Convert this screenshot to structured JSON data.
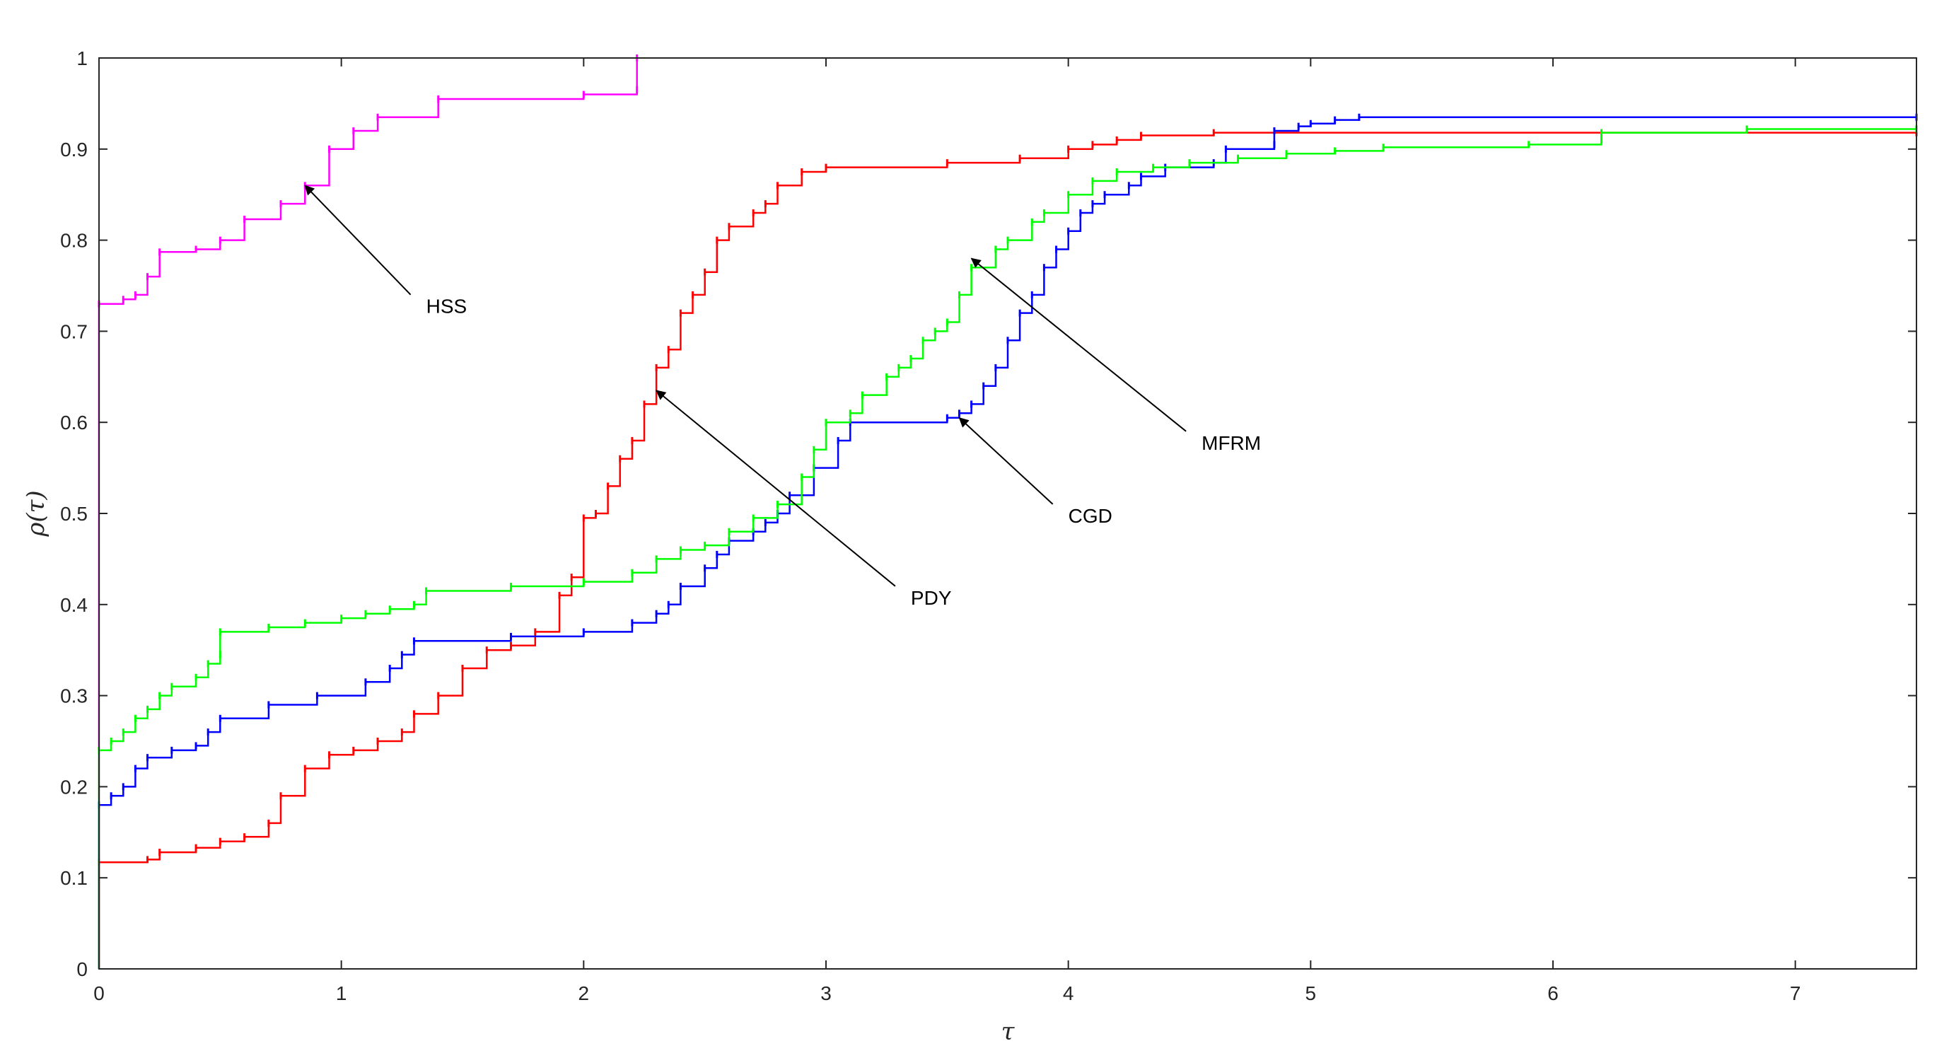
{
  "chart_data": {
    "type": "line",
    "title": "",
    "xlabel": "τ",
    "ylabel": "ρ(τ)",
    "xlim": [
      0,
      7.5
    ],
    "ylim": [
      0,
      1
    ],
    "grid": false,
    "x_ticks": [
      0,
      1,
      2,
      3,
      4,
      5,
      6,
      7
    ],
    "y_ticks": [
      0,
      0.1,
      0.2,
      0.3,
      0.4,
      0.5,
      0.6,
      0.7,
      0.8,
      0.9,
      1
    ],
    "x_tick_labels": [
      "0",
      "1",
      "2",
      "3",
      "4",
      "5",
      "6",
      "7"
    ],
    "y_tick_labels": [
      "0",
      "0.1",
      "0.2",
      "0.3",
      "0.4",
      "0.5",
      "0.6",
      "0.7",
      "0.8",
      "0.9",
      "1"
    ],
    "series": [
      {
        "name": "HSS",
        "color": "#ff00ff",
        "step": true,
        "points": [
          [
            0,
            0
          ],
          [
            0,
            0.73
          ],
          [
            0.1,
            0.735
          ],
          [
            0.15,
            0.74
          ],
          [
            0.2,
            0.76
          ],
          [
            0.25,
            0.787
          ],
          [
            0.4,
            0.79
          ],
          [
            0.5,
            0.8
          ],
          [
            0.6,
            0.823
          ],
          [
            0.75,
            0.84
          ],
          [
            0.85,
            0.86
          ],
          [
            0.95,
            0.9
          ],
          [
            1.05,
            0.92
          ],
          [
            1.15,
            0.935
          ],
          [
            1.4,
            0.955
          ],
          [
            2.0,
            0.96
          ],
          [
            2.22,
            0.965
          ],
          [
            2.22,
            1.0
          ]
        ]
      },
      {
        "name": "PDY",
        "color": "#ff0000",
        "step": true,
        "points": [
          [
            0,
            0
          ],
          [
            0,
            0.117
          ],
          [
            0.2,
            0.12
          ],
          [
            0.25,
            0.128
          ],
          [
            0.4,
            0.133
          ],
          [
            0.5,
            0.14
          ],
          [
            0.6,
            0.145
          ],
          [
            0.7,
            0.16
          ],
          [
            0.75,
            0.19
          ],
          [
            0.85,
            0.22
          ],
          [
            0.95,
            0.235
          ],
          [
            1.05,
            0.24
          ],
          [
            1.15,
            0.25
          ],
          [
            1.25,
            0.26
          ],
          [
            1.3,
            0.28
          ],
          [
            1.4,
            0.3
          ],
          [
            1.5,
            0.33
          ],
          [
            1.6,
            0.35
          ],
          [
            1.7,
            0.355
          ],
          [
            1.8,
            0.37
          ],
          [
            1.9,
            0.41
          ],
          [
            1.95,
            0.43
          ],
          [
            2.0,
            0.495
          ],
          [
            2.05,
            0.5
          ],
          [
            2.1,
            0.53
          ],
          [
            2.15,
            0.56
          ],
          [
            2.2,
            0.58
          ],
          [
            2.25,
            0.62
          ],
          [
            2.3,
            0.66
          ],
          [
            2.35,
            0.68
          ],
          [
            2.4,
            0.72
          ],
          [
            2.45,
            0.74
          ],
          [
            2.5,
            0.765
          ],
          [
            2.55,
            0.8
          ],
          [
            2.6,
            0.815
          ],
          [
            2.7,
            0.83
          ],
          [
            2.75,
            0.84
          ],
          [
            2.8,
            0.86
          ],
          [
            2.9,
            0.875
          ],
          [
            3.0,
            0.88
          ],
          [
            3.5,
            0.885
          ],
          [
            3.8,
            0.89
          ],
          [
            4.0,
            0.9
          ],
          [
            4.1,
            0.905
          ],
          [
            4.2,
            0.91
          ],
          [
            4.3,
            0.915
          ],
          [
            4.6,
            0.918
          ],
          [
            7.5,
            0.918
          ]
        ]
      },
      {
        "name": "CGD",
        "color": "#0000ff",
        "step": true,
        "points": [
          [
            0,
            0
          ],
          [
            0,
            0.18
          ],
          [
            0.05,
            0.19
          ],
          [
            0.1,
            0.2
          ],
          [
            0.15,
            0.22
          ],
          [
            0.2,
            0.232
          ],
          [
            0.3,
            0.24
          ],
          [
            0.4,
            0.245
          ],
          [
            0.45,
            0.26
          ],
          [
            0.5,
            0.275
          ],
          [
            0.7,
            0.29
          ],
          [
            0.9,
            0.3
          ],
          [
            1.1,
            0.315
          ],
          [
            1.2,
            0.33
          ],
          [
            1.25,
            0.345
          ],
          [
            1.3,
            0.36
          ],
          [
            1.7,
            0.365
          ],
          [
            2.0,
            0.37
          ],
          [
            2.2,
            0.38
          ],
          [
            2.3,
            0.39
          ],
          [
            2.35,
            0.4
          ],
          [
            2.4,
            0.42
          ],
          [
            2.5,
            0.44
          ],
          [
            2.55,
            0.455
          ],
          [
            2.6,
            0.47
          ],
          [
            2.7,
            0.48
          ],
          [
            2.75,
            0.49
          ],
          [
            2.8,
            0.5
          ],
          [
            2.85,
            0.52
          ],
          [
            2.95,
            0.55
          ],
          [
            3.05,
            0.58
          ],
          [
            3.1,
            0.6
          ],
          [
            3.5,
            0.605
          ],
          [
            3.55,
            0.61
          ],
          [
            3.6,
            0.62
          ],
          [
            3.65,
            0.64
          ],
          [
            3.7,
            0.66
          ],
          [
            3.75,
            0.69
          ],
          [
            3.8,
            0.72
          ],
          [
            3.85,
            0.74
          ],
          [
            3.9,
            0.77
          ],
          [
            3.95,
            0.79
          ],
          [
            4.0,
            0.81
          ],
          [
            4.05,
            0.83
          ],
          [
            4.1,
            0.84
          ],
          [
            4.15,
            0.85
          ],
          [
            4.25,
            0.86
          ],
          [
            4.3,
            0.87
          ],
          [
            4.4,
            0.88
          ],
          [
            4.6,
            0.885
          ],
          [
            4.65,
            0.9
          ],
          [
            4.85,
            0.905
          ],
          [
            4.85,
            0.92
          ],
          [
            4.95,
            0.925
          ],
          [
            5.0,
            0.928
          ],
          [
            5.1,
            0.932
          ],
          [
            5.2,
            0.935
          ],
          [
            7.5,
            0.935
          ]
        ]
      },
      {
        "name": "MFRM",
        "color": "#00ff00",
        "step": true,
        "points": [
          [
            0,
            0
          ],
          [
            0,
            0.24
          ],
          [
            0.05,
            0.25
          ],
          [
            0.1,
            0.26
          ],
          [
            0.15,
            0.275
          ],
          [
            0.2,
            0.285
          ],
          [
            0.25,
            0.3
          ],
          [
            0.3,
            0.31
          ],
          [
            0.4,
            0.32
          ],
          [
            0.45,
            0.335
          ],
          [
            0.5,
            0.345
          ],
          [
            0.5,
            0.37
          ],
          [
            0.7,
            0.375
          ],
          [
            0.85,
            0.38
          ],
          [
            1.0,
            0.385
          ],
          [
            1.1,
            0.39
          ],
          [
            1.2,
            0.395
          ],
          [
            1.3,
            0.4
          ],
          [
            1.35,
            0.415
          ],
          [
            1.7,
            0.42
          ],
          [
            2.0,
            0.425
          ],
          [
            2.2,
            0.435
          ],
          [
            2.3,
            0.45
          ],
          [
            2.4,
            0.46
          ],
          [
            2.5,
            0.465
          ],
          [
            2.6,
            0.48
          ],
          [
            2.7,
            0.495
          ],
          [
            2.8,
            0.51
          ],
          [
            2.9,
            0.54
          ],
          [
            2.95,
            0.57
          ],
          [
            3.0,
            0.6
          ],
          [
            3.1,
            0.61
          ],
          [
            3.15,
            0.63
          ],
          [
            3.25,
            0.65
          ],
          [
            3.3,
            0.66
          ],
          [
            3.35,
            0.67
          ],
          [
            3.4,
            0.69
          ],
          [
            3.45,
            0.7
          ],
          [
            3.5,
            0.71
          ],
          [
            3.55,
            0.74
          ],
          [
            3.6,
            0.77
          ],
          [
            3.7,
            0.79
          ],
          [
            3.75,
            0.8
          ],
          [
            3.85,
            0.82
          ],
          [
            3.9,
            0.83
          ],
          [
            4.0,
            0.85
          ],
          [
            4.1,
            0.865
          ],
          [
            4.2,
            0.875
          ],
          [
            4.35,
            0.88
          ],
          [
            4.5,
            0.885
          ],
          [
            4.7,
            0.89
          ],
          [
            4.9,
            0.895
          ],
          [
            5.1,
            0.898
          ],
          [
            5.3,
            0.902
          ],
          [
            5.9,
            0.905
          ],
          [
            6.2,
            0.91
          ],
          [
            6.2,
            0.918
          ],
          [
            6.8,
            0.922
          ],
          [
            7.5,
            0.922
          ]
        ]
      }
    ],
    "annotations": [
      {
        "text": "HSS",
        "text_pos": [
          1.35,
          0.72
        ],
        "target": [
          0.85,
          0.86
        ]
      },
      {
        "text": "PDY",
        "text_pos": [
          3.35,
          0.4
        ],
        "target": [
          2.3,
          0.635
        ]
      },
      {
        "text": "CGD",
        "text_pos": [
          4.0,
          0.49
        ],
        "target": [
          3.55,
          0.605
        ]
      },
      {
        "text": "MFRM",
        "text_pos": [
          4.55,
          0.57
        ],
        "target": [
          3.6,
          0.78
        ]
      }
    ]
  }
}
